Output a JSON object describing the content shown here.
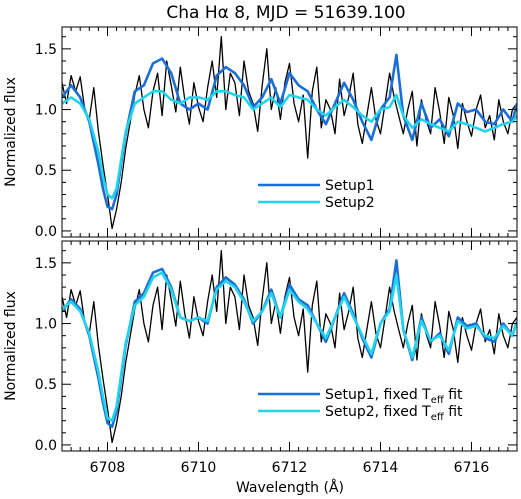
{
  "chart_data": [
    {
      "type": "line",
      "title": "Cha Hα 8, MJD = 51639.100",
      "xlabel": "",
      "ylabel": "Normalized flux",
      "xlim": [
        6707.0,
        6717.0
      ],
      "ylim": [
        -0.05,
        1.68
      ],
      "xticks": [
        6708,
        6710,
        6712,
        6714,
        6716
      ],
      "yticks": [
        "0.0",
        "0.5",
        "1.0",
        "1.5"
      ],
      "legend_position": "bottom-center",
      "series": [
        {
          "name": "",
          "style": "observed",
          "color": "#000000",
          "x": [
            6707.0,
            6707.1,
            6707.2,
            6707.3,
            6707.4,
            6707.5,
            6707.6,
            6707.7,
            6707.8,
            6707.9,
            6708.0,
            6708.1,
            6708.2,
            6708.3,
            6708.4,
            6708.5,
            6708.6,
            6708.7,
            6708.8,
            6708.9,
            6709.0,
            6709.1,
            6709.2,
            6709.3,
            6709.4,
            6709.5,
            6709.6,
            6709.7,
            6709.8,
            6709.9,
            6710.0,
            6710.1,
            6710.2,
            6710.3,
            6710.4,
            6710.5,
            6710.6,
            6710.7,
            6710.8,
            6710.9,
            6711.0,
            6711.1,
            6711.2,
            6711.3,
            6711.4,
            6711.5,
            6711.6,
            6711.7,
            6711.8,
            6711.9,
            6712.0,
            6712.1,
            6712.2,
            6712.3,
            6712.4,
            6712.5,
            6712.6,
            6712.7,
            6712.8,
            6712.9,
            6713.0,
            6713.1,
            6713.2,
            6713.3,
            6713.4,
            6713.5,
            6713.6,
            6713.7,
            6713.8,
            6713.9,
            6714.0,
            6714.1,
            6714.2,
            6714.3,
            6714.4,
            6714.5,
            6714.6,
            6714.7,
            6714.8,
            6714.9,
            6715.0,
            6715.1,
            6715.2,
            6715.3,
            6715.4,
            6715.5,
            6715.6,
            6715.7,
            6715.8,
            6715.9,
            6716.0,
            6716.1,
            6716.2,
            6716.3,
            6716.4,
            6716.5,
            6716.6,
            6716.7,
            6716.8,
            6716.9,
            6717.0
          ],
          "y": [
            1.22,
            1.05,
            1.28,
            1.15,
            1.27,
            1.0,
            0.92,
            1.18,
            0.82,
            0.55,
            0.3,
            0.02,
            0.18,
            0.4,
            0.68,
            0.9,
            1.12,
            1.28,
            1.0,
            0.85,
            1.15,
            1.3,
            0.95,
            1.4,
            1.2,
            0.98,
            1.35,
            1.08,
            0.88,
            1.22,
            1.02,
            0.9,
            1.18,
            1.4,
            1.1,
            1.6,
            1.0,
            1.3,
            1.22,
            0.95,
            1.4,
            1.15,
            1.05,
            0.82,
            1.2,
            1.5,
            1.0,
            1.18,
            0.92,
            1.22,
            1.38,
            1.05,
            0.9,
            1.12,
            0.6,
            1.15,
            1.35,
            0.85,
            1.08,
            1.0,
            0.8,
            1.25,
            0.95,
            1.1,
            1.3,
            0.88,
            0.72,
            0.95,
            1.18,
            0.92,
            0.8,
            1.05,
            1.3,
            1.1,
            0.95,
            0.8,
            1.0,
            1.15,
            0.7,
            1.08,
            0.92,
            0.8,
            1.18,
            0.98,
            0.72,
            1.1,
            0.95,
            0.68,
            1.05,
            0.9,
            0.78,
            1.0,
            1.12,
            0.85,
            0.95,
            0.75,
            1.08,
            0.9,
            0.8,
            1.0,
            1.05
          ]
        },
        {
          "name": "Setup1",
          "style": "model",
          "color": "#1a6fd6",
          "x": [
            6707.0,
            6707.2,
            6707.4,
            6707.6,
            6707.8,
            6707.9,
            6708.0,
            6708.1,
            6708.2,
            6708.4,
            6708.6,
            6708.8,
            6709.0,
            6709.2,
            6709.4,
            6709.6,
            6709.8,
            6710.0,
            6710.2,
            6710.4,
            6710.6,
            6710.8,
            6711.0,
            6711.2,
            6711.4,
            6711.6,
            6711.8,
            6712.0,
            6712.2,
            6712.4,
            6712.6,
            6712.8,
            6713.0,
            6713.2,
            6713.4,
            6713.6,
            6713.8,
            6714.0,
            6714.2,
            6714.35,
            6714.5,
            6714.7,
            6714.9,
            6715.1,
            6715.3,
            6715.5,
            6715.7,
            6715.9,
            6716.1,
            6716.3,
            6716.5,
            6716.7,
            6716.9,
            6717.0
          ],
          "y": [
            1.1,
            1.2,
            1.1,
            0.9,
            0.55,
            0.35,
            0.2,
            0.18,
            0.3,
            0.8,
            1.15,
            1.2,
            1.38,
            1.42,
            1.3,
            1.05,
            1.0,
            1.05,
            1.0,
            1.28,
            1.35,
            1.3,
            1.2,
            1.02,
            1.1,
            1.25,
            1.05,
            1.3,
            1.2,
            1.15,
            1.0,
            0.88,
            1.05,
            1.22,
            1.08,
            0.9,
            0.75,
            1.0,
            1.1,
            1.45,
            0.95,
            0.75,
            1.05,
            0.85,
            0.92,
            0.78,
            1.05,
            0.98,
            1.0,
            0.9,
            0.88,
            1.0,
            0.9,
            1.05
          ]
        },
        {
          "name": "Setup2",
          "style": "model",
          "color": "#22d3ee",
          "x": [
            6707.0,
            6707.2,
            6707.4,
            6707.6,
            6707.8,
            6707.9,
            6708.0,
            6708.1,
            6708.2,
            6708.4,
            6708.6,
            6708.8,
            6709.0,
            6709.2,
            6709.4,
            6709.6,
            6709.8,
            6710.0,
            6710.2,
            6710.4,
            6710.6,
            6710.8,
            6711.0,
            6711.2,
            6711.4,
            6711.6,
            6711.8,
            6712.0,
            6712.2,
            6712.4,
            6712.6,
            6712.8,
            6713.0,
            6713.2,
            6713.4,
            6713.6,
            6713.8,
            6714.0,
            6714.2,
            6714.35,
            6714.5,
            6714.7,
            6714.9,
            6715.1,
            6715.3,
            6715.5,
            6715.7,
            6715.9,
            6716.1,
            6716.3,
            6716.5,
            6716.7,
            6716.9,
            6717.0
          ],
          "y": [
            1.05,
            1.1,
            1.05,
            0.92,
            0.65,
            0.45,
            0.3,
            0.27,
            0.35,
            0.82,
            1.05,
            1.1,
            1.15,
            1.15,
            1.08,
            1.05,
            1.1,
            1.1,
            1.08,
            1.15,
            1.15,
            1.12,
            1.1,
            1.0,
            1.05,
            1.1,
            1.02,
            1.12,
            1.1,
            1.08,
            1.0,
            0.95,
            1.02,
            1.08,
            1.02,
            0.95,
            0.9,
            1.0,
            1.02,
            1.12,
            0.95,
            0.85,
            0.92,
            0.88,
            0.85,
            0.82,
            0.9,
            0.88,
            0.85,
            0.82,
            0.85,
            0.88,
            0.9,
            0.95
          ]
        }
      ]
    },
    {
      "type": "line",
      "title": "",
      "xlabel": "Wavelength (Å)",
      "ylabel": "Normalized flux",
      "xlim": [
        6707.0,
        6717.0
      ],
      "ylim": [
        -0.05,
        1.68
      ],
      "xticks": [
        6708,
        6710,
        6712,
        6714,
        6716
      ],
      "yticks": [
        "0.0",
        "0.5",
        "1.0",
        "1.5"
      ],
      "legend_position": "bottom-right",
      "series": [
        {
          "name": "",
          "style": "observed",
          "color": "#000000",
          "x": [
            6707.0,
            6707.1,
            6707.2,
            6707.3,
            6707.4,
            6707.5,
            6707.6,
            6707.7,
            6707.8,
            6707.9,
            6708.0,
            6708.1,
            6708.2,
            6708.3,
            6708.4,
            6708.5,
            6708.6,
            6708.7,
            6708.8,
            6708.9,
            6709.0,
            6709.1,
            6709.2,
            6709.3,
            6709.4,
            6709.5,
            6709.6,
            6709.7,
            6709.8,
            6709.9,
            6710.0,
            6710.1,
            6710.2,
            6710.3,
            6710.4,
            6710.5,
            6710.6,
            6710.7,
            6710.8,
            6710.9,
            6711.0,
            6711.1,
            6711.2,
            6711.3,
            6711.4,
            6711.5,
            6711.6,
            6711.7,
            6711.8,
            6711.9,
            6712.0,
            6712.1,
            6712.2,
            6712.3,
            6712.4,
            6712.5,
            6712.6,
            6712.7,
            6712.8,
            6712.9,
            6713.0,
            6713.1,
            6713.2,
            6713.3,
            6713.4,
            6713.5,
            6713.6,
            6713.7,
            6713.8,
            6713.9,
            6714.0,
            6714.1,
            6714.2,
            6714.3,
            6714.4,
            6714.5,
            6714.6,
            6714.7,
            6714.8,
            6714.9,
            6715.0,
            6715.1,
            6715.2,
            6715.3,
            6715.4,
            6715.5,
            6715.6,
            6715.7,
            6715.8,
            6715.9,
            6716.0,
            6716.1,
            6716.2,
            6716.3,
            6716.4,
            6716.5,
            6716.6,
            6716.7,
            6716.8,
            6716.9,
            6717.0
          ],
          "y": [
            1.22,
            1.05,
            1.28,
            1.15,
            1.27,
            1.0,
            0.92,
            1.18,
            0.82,
            0.55,
            0.3,
            0.02,
            0.18,
            0.4,
            0.68,
            0.9,
            1.12,
            1.28,
            1.0,
            0.85,
            1.15,
            1.3,
            0.95,
            1.4,
            1.2,
            0.98,
            1.35,
            1.08,
            0.88,
            1.22,
            1.02,
            0.9,
            1.18,
            1.4,
            1.1,
            1.6,
            1.0,
            1.3,
            1.22,
            0.95,
            1.4,
            1.15,
            1.05,
            0.82,
            1.2,
            1.5,
            1.0,
            1.18,
            0.92,
            1.22,
            1.38,
            1.05,
            0.9,
            1.12,
            0.6,
            1.15,
            1.35,
            0.85,
            1.08,
            1.0,
            0.8,
            1.25,
            0.95,
            1.1,
            1.3,
            0.88,
            0.72,
            0.95,
            1.18,
            0.92,
            0.8,
            1.05,
            1.3,
            1.1,
            0.95,
            0.8,
            1.0,
            1.15,
            0.7,
            1.08,
            0.92,
            0.8,
            1.18,
            0.98,
            0.72,
            1.1,
            0.95,
            0.68,
            1.05,
            0.9,
            0.78,
            1.0,
            1.12,
            0.85,
            0.95,
            0.75,
            1.08,
            0.9,
            0.8,
            1.0,
            1.05
          ]
        },
        {
          "name": "Setup1, fixed T",
          "sub": "eff",
          "suffix": " fit",
          "style": "model",
          "color": "#1a6fd6",
          "x": [
            6707.0,
            6707.2,
            6707.4,
            6707.6,
            6707.8,
            6707.9,
            6708.0,
            6708.1,
            6708.2,
            6708.4,
            6708.6,
            6708.8,
            6709.0,
            6709.2,
            6709.4,
            6709.6,
            6709.8,
            6710.0,
            6710.2,
            6710.4,
            6710.6,
            6710.8,
            6711.0,
            6711.2,
            6711.4,
            6711.6,
            6711.8,
            6712.0,
            6712.2,
            6712.4,
            6712.6,
            6712.8,
            6713.0,
            6713.2,
            6713.4,
            6713.6,
            6713.8,
            6714.0,
            6714.2,
            6714.35,
            6714.5,
            6714.7,
            6714.9,
            6715.1,
            6715.3,
            6715.5,
            6715.7,
            6715.9,
            6716.1,
            6716.3,
            6716.5,
            6716.7,
            6716.9,
            6717.0
          ],
          "y": [
            1.1,
            1.2,
            1.12,
            0.9,
            0.55,
            0.35,
            0.18,
            0.15,
            0.28,
            0.82,
            1.18,
            1.25,
            1.42,
            1.45,
            1.3,
            1.05,
            1.02,
            1.05,
            1.0,
            1.3,
            1.38,
            1.32,
            1.2,
            1.0,
            1.1,
            1.28,
            1.05,
            1.32,
            1.2,
            1.15,
            1.0,
            0.85,
            1.05,
            1.25,
            1.08,
            0.88,
            0.72,
            1.0,
            1.12,
            1.52,
            0.95,
            0.7,
            1.05,
            0.85,
            0.92,
            0.75,
            1.05,
            0.98,
            1.0,
            0.88,
            0.85,
            1.0,
            0.9,
            1.02
          ]
        },
        {
          "name": "Setup2, fixed T",
          "sub": "eff",
          "suffix": " fit",
          "style": "model",
          "color": "#22d3ee",
          "x": [
            6707.0,
            6707.2,
            6707.4,
            6707.6,
            6707.8,
            6707.9,
            6708.0,
            6708.1,
            6708.2,
            6708.4,
            6708.6,
            6708.8,
            6709.0,
            6709.2,
            6709.4,
            6709.6,
            6709.8,
            6710.0,
            6710.2,
            6710.4,
            6710.6,
            6710.8,
            6711.0,
            6711.2,
            6711.4,
            6711.6,
            6711.8,
            6712.0,
            6712.2,
            6712.4,
            6712.6,
            6712.8,
            6713.0,
            6713.2,
            6713.4,
            6713.6,
            6713.8,
            6714.0,
            6714.2,
            6714.35,
            6714.5,
            6714.7,
            6714.9,
            6715.1,
            6715.3,
            6715.5,
            6715.7,
            6715.9,
            6716.1,
            6716.3,
            6716.5,
            6716.7,
            6716.9,
            6717.0
          ],
          "y": [
            1.12,
            1.18,
            1.1,
            0.92,
            0.6,
            0.4,
            0.22,
            0.2,
            0.32,
            0.84,
            1.15,
            1.22,
            1.38,
            1.42,
            1.28,
            1.05,
            1.02,
            1.05,
            1.02,
            1.28,
            1.35,
            1.3,
            1.18,
            1.02,
            1.1,
            1.25,
            1.05,
            1.28,
            1.18,
            1.12,
            1.0,
            0.88,
            1.05,
            1.22,
            1.06,
            0.9,
            0.75,
            1.0,
            1.1,
            1.4,
            0.95,
            0.72,
            1.02,
            0.86,
            0.9,
            0.78,
            1.02,
            0.96,
            0.98,
            0.9,
            0.88,
            0.98,
            0.9,
            1.02
          ]
        }
      ]
    }
  ]
}
